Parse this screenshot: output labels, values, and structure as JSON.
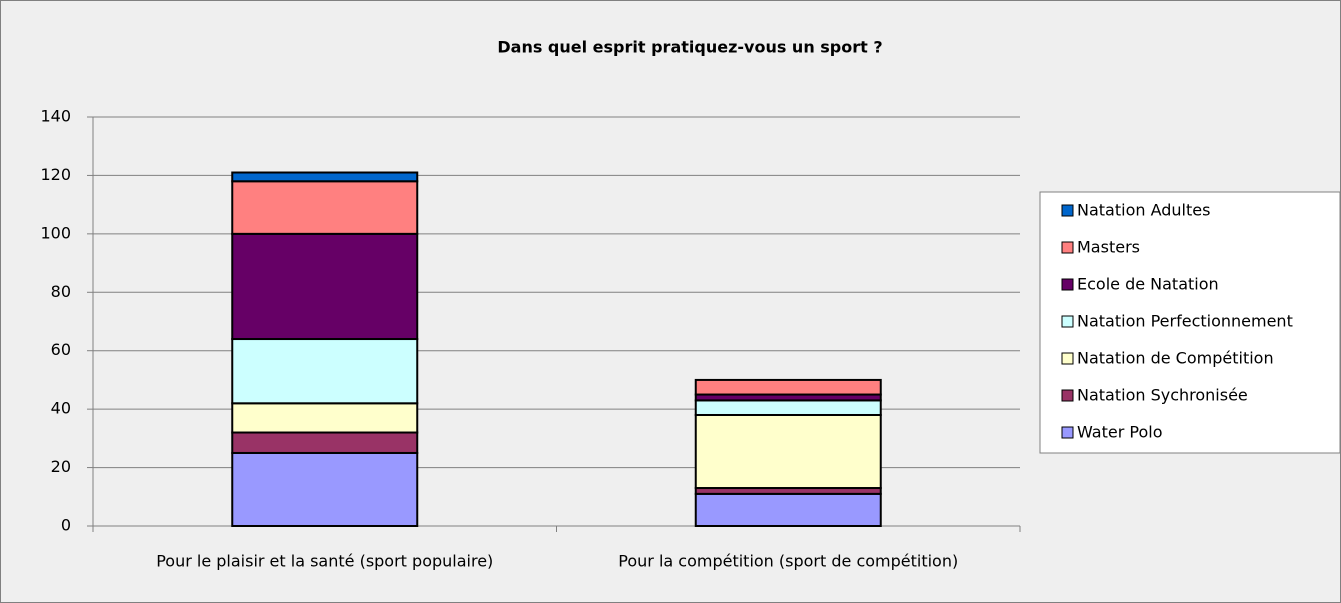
{
  "chart_data": {
    "type": "stacked_bar",
    "title": "Dans quel esprit pratiquez-vous un sport ?",
    "categories": [
      "Pour le plaisir et la santé (sport populaire)",
      "Pour la compétition (sport de compétition)"
    ],
    "series": [
      {
        "name": "Water Polo",
        "color": "#9999ff",
        "values": [
          25,
          11
        ]
      },
      {
        "name": "Natation Sychronisée",
        "color": "#993366",
        "values": [
          7,
          2
        ]
      },
      {
        "name": "Natation de Compétition",
        "color": "#ffffcc",
        "values": [
          10,
          25
        ]
      },
      {
        "name": "Natation Perfectionnement",
        "color": "#ccffff",
        "values": [
          22,
          5
        ]
      },
      {
        "name": "Ecole de Natation",
        "color": "#660066",
        "values": [
          36,
          2
        ]
      },
      {
        "name": "Masters",
        "color": "#ff8080",
        "values": [
          18,
          5
        ]
      },
      {
        "name": "Natation Adultes",
        "color": "#0066cc",
        "values": [
          3,
          0
        ]
      }
    ],
    "ylim": [
      0,
      140
    ],
    "yticks": [
      0,
      20,
      40,
      60,
      80,
      100,
      120,
      140
    ],
    "grid": true,
    "legend": "right"
  }
}
